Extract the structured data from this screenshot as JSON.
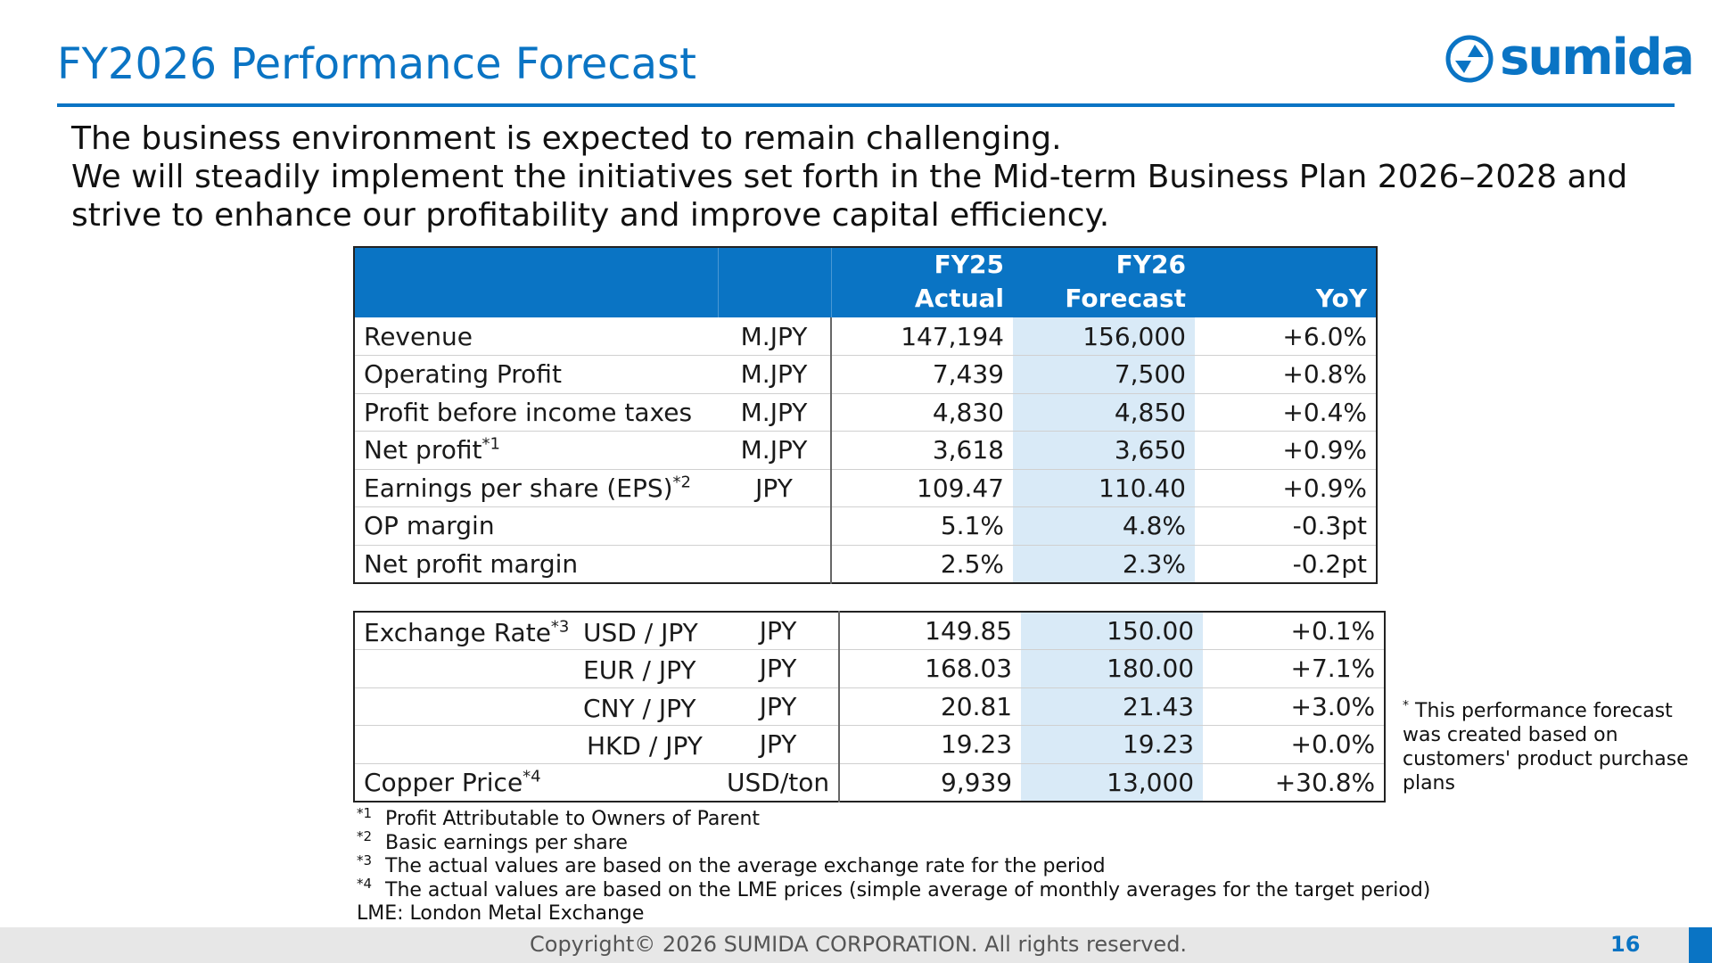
{
  "header": {
    "title": "FY2026 Performance Forecast",
    "logo_text": "sumida"
  },
  "intro": {
    "line1": "The business environment is expected to remain challenging.",
    "line2": "We will steadily implement the initiatives set forth in the Mid-term Business Plan 2026–2028 and",
    "line3": "strive to enhance our profitability and improve capital efficiency."
  },
  "table1": {
    "headers": {
      "fy25_line1": "FY25",
      "fy25_line2": "Actual",
      "fy26_line1": "FY26",
      "fy26_line2": "Forecast",
      "yoy": "YoY"
    },
    "rows": [
      {
        "label": "Revenue",
        "sup": "",
        "unit": "M.JPY",
        "fy25": "147,194",
        "fy26": "156,000",
        "yoy": "+6.0%"
      },
      {
        "label": "Operating Profit",
        "sup": "",
        "unit": "M.JPY",
        "fy25": "7,439",
        "fy26": "7,500",
        "yoy": "+0.8%"
      },
      {
        "label": "Profit before income taxes",
        "sup": "",
        "unit": "M.JPY",
        "fy25": "4,830",
        "fy26": "4,850",
        "yoy": "+0.4%"
      },
      {
        "label": "Net profit",
        "sup": "*1",
        "unit": "M.JPY",
        "fy25": "3,618",
        "fy26": "3,650",
        "yoy": "+0.9%"
      },
      {
        "label": "Earnings per share (EPS)",
        "sup": "*2",
        "unit": "JPY",
        "fy25": "109.47",
        "fy26": "110.40",
        "yoy": "+0.9%"
      },
      {
        "label": "OP margin",
        "sup": "",
        "unit": "",
        "fy25": "5.1%",
        "fy26": "4.8%",
        "yoy": "-0.3pt"
      },
      {
        "label": "Net profit margin",
        "sup": "",
        "unit": "",
        "fy25": "2.5%",
        "fy26": "2.3%",
        "yoy": "-0.2pt"
      }
    ]
  },
  "table2": {
    "exchange_label": "Exchange Rate",
    "exchange_sup": "*3",
    "copper_label": "Copper Price",
    "copper_sup": "*4",
    "rows": [
      {
        "pair": "USD / JPY",
        "unit": "JPY",
        "fy25": "149.85",
        "fy26": "150.00",
        "yoy": "+0.1%"
      },
      {
        "pair": "EUR / JPY",
        "unit": "JPY",
        "fy25": "168.03",
        "fy26": "180.00",
        "yoy": "+7.1%"
      },
      {
        "pair": "CNY / JPY",
        "unit": "JPY",
        "fy25": "20.81",
        "fy26": "21.43",
        "yoy": "+3.0%"
      },
      {
        "pair": "HKD / JPY",
        "unit": "JPY",
        "fy25": "19.23",
        "fy26": "19.23",
        "yoy": "+0.0%"
      }
    ],
    "copper": {
      "unit": "USD/ton",
      "fy25": "9,939",
      "fy26": "13,000",
      "yoy": "+30.8%"
    }
  },
  "notes": [
    {
      "mark": "*1",
      "text": "Profit Attributable to Owners of Parent"
    },
    {
      "mark": "*2",
      "text": "Basic earnings per share"
    },
    {
      "mark": "*3",
      "text": "The actual values are based on the average exchange rate for the period"
    },
    {
      "mark": "*4",
      "text": "The actual values are based on the LME prices (simple average of monthly averages for the target period)"
    }
  ],
  "notes_last": "LME: London Metal Exchange",
  "side_note": {
    "mark": "*",
    "text": "This performance forecast was created based on customers' product purchase plans"
  },
  "footer": {
    "copyright": "Copyright© 2026 SUMIDA CORPORATION. All rights reserved.",
    "page": "16"
  },
  "colors": {
    "brand_blue": "#0a74c4",
    "forecast_highlight": "#d9eaf7",
    "footer_bg": "#e7e7e7"
  }
}
